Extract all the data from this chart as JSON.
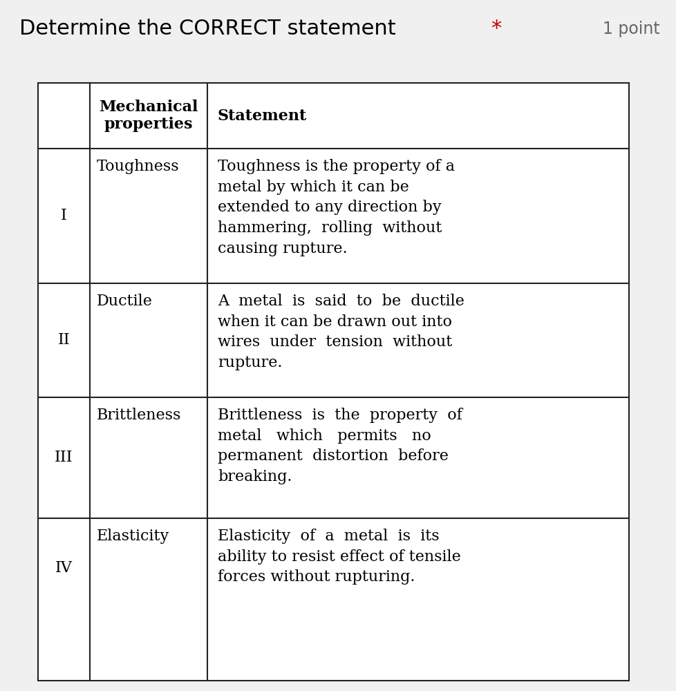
{
  "title": "Determine the CORRECT statement",
  "title_color": "#000000",
  "asterisk": "*",
  "asterisk_color": "#cc0000",
  "points_text": "1 point",
  "points_color": "#666666",
  "background_color": "#f0f0f0",
  "header_bg": "#d3d3d3",
  "col1_header": "Mechanical\nproperties",
  "col2_header": "Statement",
  "rows": [
    {
      "num": "I",
      "prop": "Toughness",
      "statement": "Toughness is the property of a\nmetal by which it can be\nextended to any direction by\nhammering,  rolling  without\ncausing rupture."
    },
    {
      "num": "II",
      "prop": "Ductile",
      "statement": "A  metal  is  said  to  be  ductile\nwhen it can be drawn out into\nwires  under  tension  without\nrupture."
    },
    {
      "num": "III",
      "prop": "Brittleness",
      "statement": "Brittleness  is  the  property  of\nmetal   which   permits   no\npermanent  distortion  before\nbreaking."
    },
    {
      "num": "IV",
      "prop": "Elasticity",
      "statement": "Elasticity  of  a  metal  is  its\nability to resist effect of tensile\nforces without rupturing."
    }
  ],
  "title_fontsize": 22,
  "header_fontsize": 16,
  "cell_fontsize": 16,
  "points_fontsize": 17
}
